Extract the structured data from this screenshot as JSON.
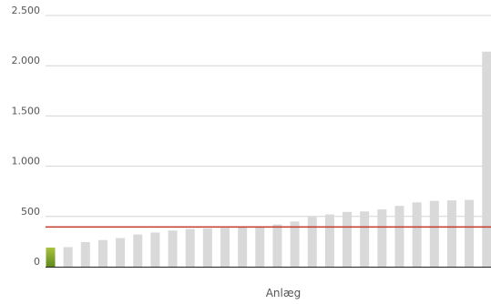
{
  "chart_data": {
    "type": "bar",
    "xlabel": "Anlæg",
    "ylabel": "",
    "ylim": [
      0,
      2500
    ],
    "yticks": [
      0,
      500,
      1000,
      1500,
      2000,
      2500
    ],
    "ytick_labels": [
      "0",
      "500",
      "1.000",
      "1.500",
      "2.000",
      "2.500"
    ],
    "grid": true,
    "legend": "none",
    "values": [
      190,
      195,
      245,
      265,
      285,
      320,
      340,
      360,
      375,
      380,
      385,
      390,
      395,
      420,
      450,
      495,
      520,
      545,
      550,
      570,
      605,
      640,
      655,
      660,
      665,
      2140
    ],
    "highlight_index": 0,
    "reference_line": 395,
    "colors": {
      "bar": "#d9d9d9",
      "highlight_top": "#a9c23f",
      "highlight_bottom": "#5f8a1c",
      "reference_line": "#c0392b",
      "grid": "#d4d4d4",
      "axis": "#222222",
      "text": "#555555"
    }
  }
}
